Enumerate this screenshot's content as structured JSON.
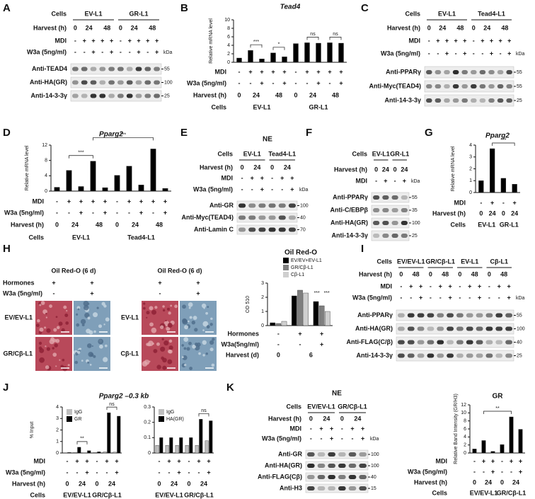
{
  "panels": [
    {
      "kind": "blot",
      "letter": "A",
      "cells_label": "Cells",
      "cells": [
        "EV-L1",
        "GR-L1"
      ],
      "harvest_label": "Harvest (h)",
      "harvest": [
        "0",
        "24",
        "48",
        "0",
        "24",
        "48"
      ],
      "mdi_label": "MDI",
      "mdi": [
        "-",
        "+",
        "+",
        "+",
        "+",
        "-",
        "+",
        "+",
        "+",
        "+"
      ],
      "w3a_label": "W3a (5ng/ml)",
      "w3a": [
        "-",
        "-",
        "+",
        "-",
        "+",
        "-",
        "-",
        "+",
        "-",
        "+"
      ],
      "kda_label": "kDa",
      "rows": [
        {
          "label": "Anti-TEAD4",
          "kda": 55
        },
        {
          "label": "Anti-HA(GR)",
          "kda": 100
        },
        {
          "label": "Anti-14-3-3γ",
          "kda": 25
        }
      ]
    },
    {
      "kind": "bar",
      "letter": "B",
      "title": "Tead4",
      "ylabel": "Relative mRNA level",
      "ylim": [
        0,
        10
      ],
      "yticks": [
        0,
        2,
        4,
        6,
        8,
        10
      ],
      "color": "#000000",
      "values": [
        1.0,
        2.8,
        0.8,
        2.2,
        1.3,
        4.4,
        4.6,
        4.5,
        4.6,
        4.5
      ],
      "annotations": [
        "***",
        "*",
        "ns",
        "ns"
      ],
      "rows": [
        {
          "label": "MDI",
          "items": [
            "-",
            "+",
            "+",
            "+",
            "+",
            "-",
            "+",
            "+",
            "+",
            "+"
          ]
        },
        {
          "label": "W3a (5ng/ml)",
          "items": [
            "-",
            "-",
            "+",
            "-",
            "+",
            "-",
            "-",
            "+",
            "-",
            "+"
          ]
        },
        {
          "label": "Harvest (h)",
          "items": [
            "0",
            "24",
            "48",
            "0",
            "24",
            "48"
          ]
        },
        {
          "label": "Cells",
          "items": [
            "EV-L1",
            "GR-L1"
          ]
        }
      ]
    },
    {
      "kind": "blot",
      "letter": "C",
      "cells_label": "Cells",
      "cells": [
        "EV-L1",
        "Tead4-L1"
      ],
      "harvest_label": "Harvest (h)",
      "harvest": [
        "0",
        "24",
        "48",
        "0",
        "24",
        "48"
      ],
      "mdi_label": "MDI",
      "mdi": [
        "-",
        "+",
        "+",
        "+",
        "+",
        "-",
        "+",
        "+",
        "+",
        "+"
      ],
      "w3a_label": "W3a (5ng/ml)",
      "w3a": [
        "-",
        "-",
        "+",
        "-",
        "+",
        "-",
        "-",
        "+",
        "-",
        "+"
      ],
      "kda_label": "kDa",
      "rows": [
        {
          "label": "Anti-PPARγ",
          "kda": 55
        },
        {
          "label": "Anti-Myc(TEAD4)",
          "kda": 55
        },
        {
          "label": "Anti-14-3-3γ",
          "kda": 25
        }
      ]
    },
    {
      "kind": "bar",
      "letter": "D",
      "title": "Pparg2",
      "ylabel": "Relative mRNA level",
      "ylim": [
        0,
        12
      ],
      "yticks": [
        0,
        4,
        8,
        12
      ],
      "color": "#000000",
      "values": [
        1.0,
        5.4,
        1.2,
        7.8,
        0.9,
        4.1,
        6.5,
        1.6,
        11.0,
        0.7
      ],
      "annotations": [
        "***",
        "***"
      ],
      "rows": [
        {
          "label": "MDI",
          "items": [
            "-",
            "+",
            "+",
            "+",
            "+",
            "-",
            "+",
            "+",
            "+",
            "+"
          ]
        },
        {
          "label": "W3a (5ng/ml)",
          "items": [
            "-",
            "-",
            "+",
            "-",
            "+",
            "-",
            "-",
            "+",
            "-",
            "+"
          ]
        },
        {
          "label": "Harvest (h)",
          "items": [
            "0",
            "24",
            "48",
            "0",
            "24",
            "48"
          ]
        },
        {
          "label": "Cells",
          "items": [
            "EV-L1",
            "Tead4-L1"
          ]
        }
      ]
    },
    {
      "kind": "blot",
      "letter": "E",
      "nuclear": "NE",
      "cells_label": "Cells",
      "cells": [
        "EV-L1",
        "Tead4-L1"
      ],
      "harvest_label": "Harvest (h)",
      "harvest": [
        "0",
        "24",
        "0",
        "24"
      ],
      "mdi_label": "MDI",
      "mdi": [
        "-",
        "+",
        "+",
        "-",
        "+",
        "+"
      ],
      "w3a_label": "W3a (5ng/ml)",
      "w3a": [
        "-",
        "-",
        "+",
        "-",
        "-",
        "+"
      ],
      "kda_label": "kDa",
      "rows": [
        {
          "label": "Anti-GR",
          "kda": 100
        },
        {
          "label": "Anti-Myc(TEAD4)",
          "kda": 40
        },
        {
          "label": "Anti-Lamin C",
          "kda": 70
        }
      ]
    },
    {
      "kind": "blot",
      "letter": "F",
      "cells_label": "Cells",
      "cells": [
        "EV-L1",
        "GR-L1"
      ],
      "harvest_label": "Harvest (h)",
      "harvest": [
        "0",
        "24",
        "0",
        "24"
      ],
      "mdi_label": "MDI",
      "mdi": [
        "-",
        "+",
        "-",
        "+"
      ],
      "kda_label": "kDa",
      "rows": [
        {
          "label": "Anti-PPARγ",
          "kda": 55
        },
        {
          "label": "Anti-C/EBPβ",
          "kda": 35
        },
        {
          "label": "Anti-HA(GR)",
          "kda": 100
        },
        {
          "label": "Anti-14-3-3γ",
          "kda": 25
        }
      ]
    },
    {
      "kind": "bar",
      "letter": "G",
      "title": "Pparg2",
      "ylabel": "Relative mRNA level",
      "ylim": [
        0,
        4
      ],
      "yticks": [
        0,
        1,
        2,
        3,
        4
      ],
      "color": "#000000",
      "values": [
        1.0,
        3.7,
        1.2,
        0.7
      ],
      "annotations": [
        "***"
      ],
      "rows": [
        {
          "label": "MDI",
          "items": [
            "-",
            "+",
            "-",
            "+"
          ]
        },
        {
          "label": "Harvest (h)",
          "items": [
            "0",
            "24",
            "0",
            "24"
          ]
        },
        {
          "label": "Cells",
          "items": [
            "EV-L1",
            "GR-L1"
          ]
        }
      ]
    },
    {
      "kind": "oil",
      "letter": "H",
      "hormones_label": "Hormones",
      "w3a_label": "W3a (5ng/ml)",
      "groups": [
        {
          "title": "Oil Red-O (6 d)",
          "hormones": [
            "+",
            "+"
          ],
          "w3a": [
            "-",
            "+"
          ],
          "lines": [
            "EV/EV-L1",
            "GR/Cβ-L1"
          ]
        },
        {
          "title": "Oil Red-O (6 d)",
          "hormones": [
            "+",
            "+"
          ],
          "w3a": [
            "-",
            "+"
          ],
          "lines": [
            "EV-L1",
            "Cβ-L1"
          ]
        }
      ]
    },
    {
      "kind": "bar",
      "title": "Oil Red-O",
      "ylabel": "OD 510",
      "ylim": [
        0,
        3
      ],
      "yticks": [
        0,
        1,
        2,
        3
      ],
      "series": [
        {
          "name": "EV/EV+EV-L1",
          "color": "#000000",
          "values": [
            0.2,
            2.1,
            1.7
          ]
        },
        {
          "name": "GR/Cβ-L1",
          "color": "#7f7f7f",
          "values": [
            0.15,
            2.5,
            1.4
          ]
        },
        {
          "name": "Cβ-L1",
          "color": "#cfcfcf",
          "values": [
            0.3,
            2.3,
            1.0
          ]
        }
      ],
      "annotations": [
        "***",
        "***"
      ],
      "rows": [
        {
          "label": "Hormones",
          "items": [
            "-",
            "+",
            "+"
          ]
        },
        {
          "label": "W3a(5ng/ml)",
          "items": [
            "-",
            "-",
            "+"
          ]
        },
        {
          "label": "Harvest (d)",
          "items": [
            "0",
            "6"
          ]
        }
      ]
    },
    {
      "kind": "blot",
      "letter": "I",
      "cells_label": "Cells",
      "cells": [
        "EV/EV-L1",
        "GR/Cβ-L1",
        "EV-L1",
        "Cβ-L1"
      ],
      "harvest_label": "Harvest (h)",
      "harvest": [
        "0",
        "48",
        "0",
        "48",
        "0",
        "48",
        "0",
        "48"
      ],
      "mdi_label": "MDI",
      "mdi": [
        "-",
        "+",
        "+",
        "-",
        "+",
        "+",
        "-",
        "+",
        "+",
        "-",
        "+",
        "+"
      ],
      "w3a_label": "W3a (5ng/ml)",
      "w3a": [
        "-",
        "-",
        "+",
        "-",
        "-",
        "+",
        "-",
        "-",
        "+",
        "-",
        "-",
        "+"
      ],
      "kda_label": "kDa",
      "rows": [
        {
          "label": "Anti-PPARγ",
          "kda": 55
        },
        {
          "label": "Anti-HA(GR)",
          "kda": 100
        },
        {
          "label": "Anti-FLAG(C/β)",
          "kda": 40
        },
        {
          "label": "Anti-14-3-3γ",
          "kda": 25
        }
      ]
    },
    {
      "kind": "bar",
      "letter": "J",
      "title": "Pparg2 –0.3 kb",
      "ylabel": "% Input",
      "ylim": [
        0,
        4
      ],
      "yticks": [
        0,
        1,
        2,
        3,
        4
      ],
      "series": [
        {
          "name": "IgG",
          "color": "#bfbfbf",
          "values": [
            0.02,
            0.05,
            0.02,
            0.05,
            0.1,
            0.08
          ]
        },
        {
          "name": "GR",
          "color": "#000000",
          "values": [
            0.05,
            0.5,
            0.2,
            0.1,
            3.5,
            3.2
          ]
        }
      ],
      "annotations": [
        "**",
        "ns"
      ],
      "rows": [
        {
          "label": "MDI",
          "items": [
            "-",
            "+",
            "+",
            "-",
            "+",
            "+"
          ]
        },
        {
          "label": "W3a (5ng/ml)",
          "items": [
            "-",
            "-",
            "+",
            "-",
            "-",
            "+"
          ]
        },
        {
          "label": "Harvest (h)",
          "items": [
            "0",
            "24",
            "0",
            "24"
          ]
        },
        {
          "label": "Cells",
          "items": [
            "EV/EV-L1",
            "GR/Cβ-L1"
          ]
        }
      ]
    },
    {
      "kind": "bar",
      "ylim": [
        0,
        0.3
      ],
      "yticks": [
        0,
        0.1,
        0.2,
        0.3
      ],
      "series": [
        {
          "name": "IgG",
          "color": "#bfbfbf",
          "values": [
            0.05,
            0.05,
            0.05,
            0.05,
            0.05,
            0.08
          ]
        },
        {
          "name": "HA(GR)",
          "color": "#000000",
          "values": [
            0.1,
            0.1,
            0.1,
            0.1,
            0.22,
            0.21
          ]
        }
      ],
      "annotations": [
        "ns"
      ],
      "rows": [
        {
          "items": [
            "-",
            "+",
            "+",
            "-",
            "+",
            "+"
          ]
        },
        {
          "items": [
            "-",
            "-",
            "+",
            "-",
            "-",
            "+"
          ]
        },
        {
          "items": [
            "0",
            "24",
            "0",
            "24"
          ]
        },
        {
          "items": [
            "EV/EV-L1",
            "GR/Cβ-L1"
          ]
        }
      ]
    },
    {
      "kind": "blot",
      "letter": "K",
      "nuclear": "NE",
      "cells_label": "Cells",
      "cells": [
        "EV/EV-L1",
        "GR/Cβ-L1"
      ],
      "harvest_label": "Harvest (h)",
      "harvest": [
        "0",
        "24",
        "0",
        "24"
      ],
      "mdi_label": "MDI",
      "mdi": [
        "-",
        "+",
        "+",
        "-",
        "+",
        "+"
      ],
      "w3a_label": "W3a (5ng/ml)",
      "w3a": [
        "-",
        "-",
        "+",
        "-",
        "-",
        "+"
      ],
      "kda_label": "kDa",
      "rows": [
        {
          "label": "Anti-GR",
          "kda": 100
        },
        {
          "label": "Anti-HA(GR)",
          "kda": 100
        },
        {
          "label": "Anti-FLAG(Cβ)",
          "kda": 40
        },
        {
          "label": "Anti-H3",
          "kda": 15
        }
      ]
    },
    {
      "kind": "bar",
      "title": "GR",
      "ylabel": "Relative Band Intensity (GR/H3)",
      "ylim": [
        0,
        12
      ],
      "yticks": [
        0,
        2,
        4,
        6,
        8,
        10,
        12
      ],
      "color": "#000000",
      "values": [
        1.0,
        3.1,
        0.4,
        2.1,
        9.0,
        5.9
      ],
      "annotations": [
        "**"
      ],
      "rows": [
        {
          "label": "MDI",
          "items": [
            "-",
            "+",
            "+",
            "-",
            "+",
            "+"
          ]
        },
        {
          "label": "W3a (5ng/ml)",
          "items": [
            "-",
            "-",
            "+",
            "-",
            "-",
            "+"
          ]
        },
        {
          "label": "Harvest (h)",
          "items": [
            "0",
            "24",
            "0",
            "24"
          ]
        },
        {
          "label": "Cells",
          "items": [
            "EV/EV-L1",
            "GR/Cβ-L1"
          ]
        }
      ]
    }
  ]
}
